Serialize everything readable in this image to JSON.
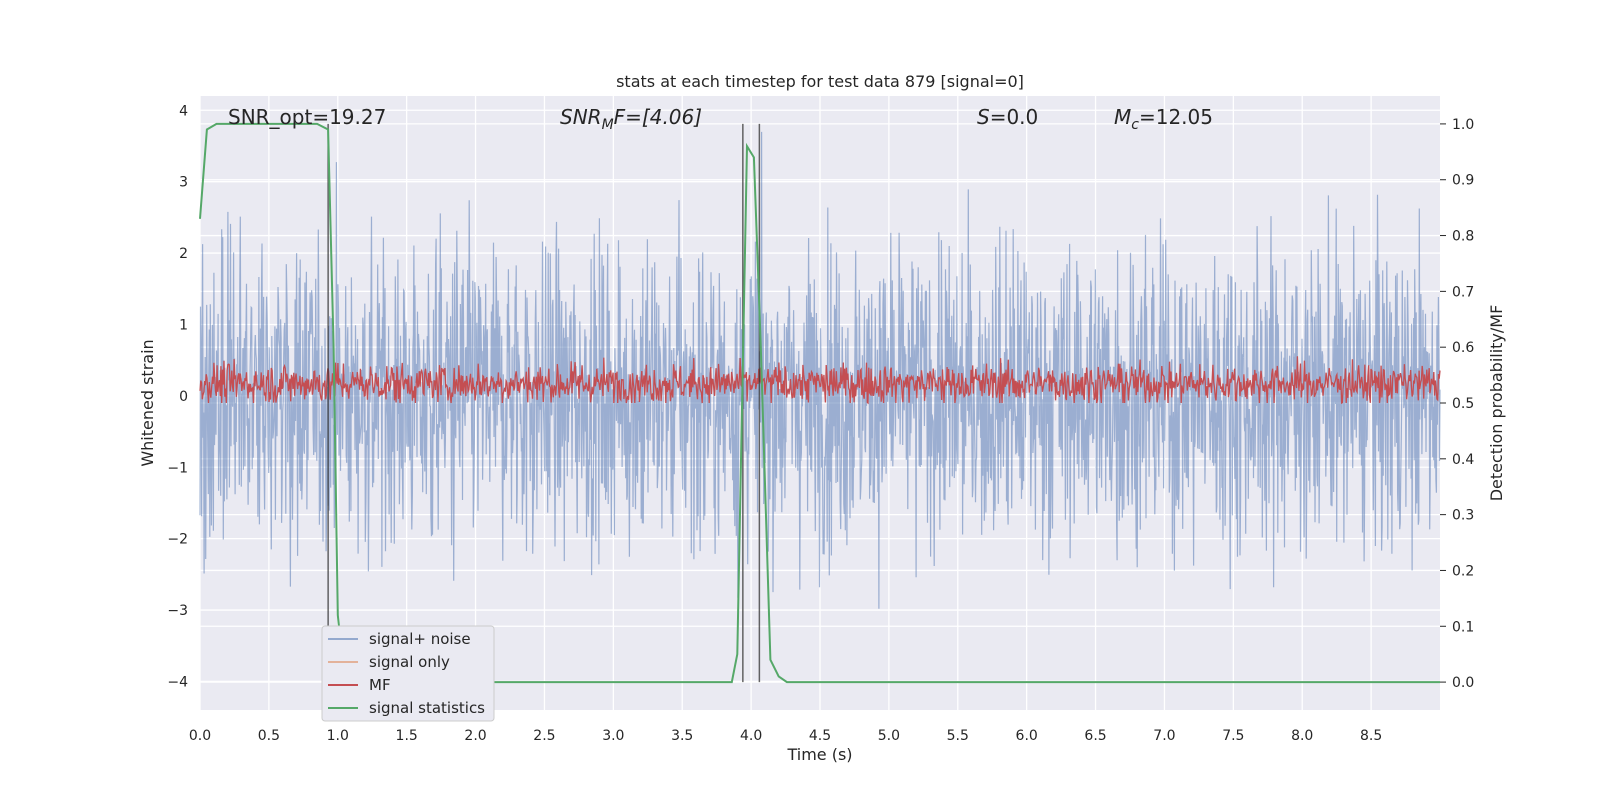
{
  "chart_data": {
    "type": "line",
    "title": "stats at each timestep for test data 879 [signal=0]",
    "xlabel": "Time (s)",
    "ylabel": "Whitened strain",
    "y2label": "Detection probability/MF",
    "xlim": [
      0.0,
      9.0
    ],
    "ylim": [
      -4.4,
      4.2
    ],
    "y2lim": [
      -0.05,
      1.05
    ],
    "xticks": [
      "0.0",
      "0.5",
      "1.0",
      "1.5",
      "2.0",
      "2.5",
      "3.0",
      "3.5",
      "4.0",
      "4.5",
      "5.0",
      "5.5",
      "6.0",
      "6.5",
      "7.0",
      "7.5",
      "8.0",
      "8.5"
    ],
    "yticks": [
      "4",
      "3",
      "2",
      "1",
      "0",
      "−1",
      "−2",
      "−3",
      "−4"
    ],
    "y2ticks": [
      "1.0",
      "0.9",
      "0.8",
      "0.7",
      "0.6",
      "0.5",
      "0.4",
      "0.3",
      "0.2",
      "0.1",
      "0.0"
    ],
    "grid": true,
    "legend_position": "lower-left",
    "annotations": {
      "snr_opt": "SNR_opt=19.27",
      "snr_mf_sym": "SNR",
      "snr_mf_sub": "M",
      "snr_mf_tail": "F=[4.06]",
      "s_sym": "S",
      "s_val": "=0.0",
      "mc_sym": "M",
      "mc_sub": "c",
      "mc_val": "=12.05"
    },
    "vlines_x": [
      0.93,
      3.94,
      4.06
    ],
    "series": [
      {
        "name": "signal+ noise",
        "color": "#4c72b0",
        "axis": "left",
        "description_range": [
          -3.7,
          3.9
        ]
      },
      {
        "name": "signal only",
        "color": "#dd8452",
        "axis": "left",
        "x": [],
        "y": []
      },
      {
        "name": "MF",
        "color": "#c44e52",
        "axis": "right",
        "description_range": [
          0.5,
          0.62
        ]
      },
      {
        "name": "signal statistics",
        "color": "#55a868",
        "axis": "right",
        "x": [
          0.0,
          0.05,
          0.12,
          0.3,
          0.6,
          0.85,
          0.93,
          0.97,
          1.0,
          1.05,
          1.2,
          2.0,
          3.0,
          3.86,
          3.9,
          3.97,
          4.02,
          4.07,
          4.14,
          4.2,
          4.26,
          5.0,
          6.0,
          7.0,
          8.0,
          9.0
        ],
        "y": [
          0.83,
          0.99,
          1.0,
          1.0,
          1.0,
          1.0,
          0.99,
          0.6,
          0.12,
          0.0,
          0.0,
          0.0,
          0.0,
          0.0,
          0.05,
          0.96,
          0.94,
          0.6,
          0.04,
          0.01,
          0.0,
          0.0,
          0.0,
          0.0,
          0.0,
          0.0
        ]
      }
    ]
  }
}
